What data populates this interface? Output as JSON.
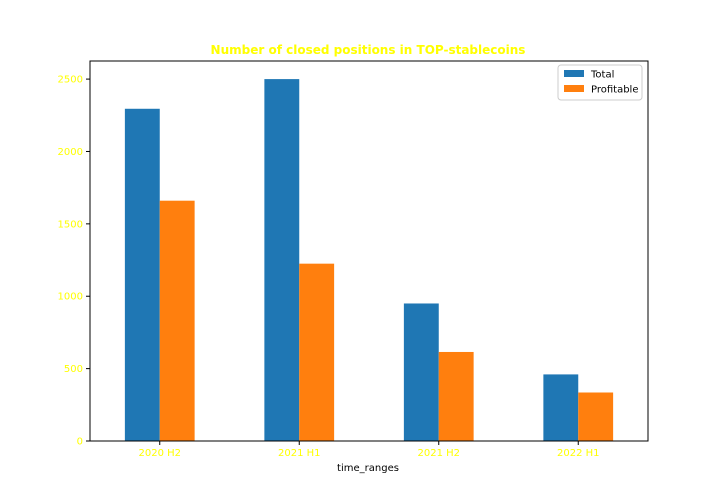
{
  "chart_data": {
    "type": "bar",
    "title": "Number of closed positions in TOP-stablecoins",
    "xlabel": "time_ranges",
    "ylabel": "",
    "categories": [
      "2020 H2",
      "2021 H1",
      "2021 H2",
      "2022 H1"
    ],
    "series": [
      {
        "name": "Total",
        "values": [
          2295,
          2500,
          950,
          460
        ]
      },
      {
        "name": "Profitable",
        "values": [
          1660,
          1225,
          615,
          335
        ]
      }
    ],
    "ylim": [
      0,
      2625
    ],
    "yticks": [
      0,
      500,
      1000,
      1500,
      2000,
      2500
    ],
    "grid": false,
    "legend_position": "top-right"
  },
  "colors": {
    "series": [
      "#1f77b4",
      "#ff7f0e"
    ],
    "tick_labels": "#ffff00",
    "title": "#ffff00",
    "axis_label": "#000000",
    "frame": "#000000"
  }
}
